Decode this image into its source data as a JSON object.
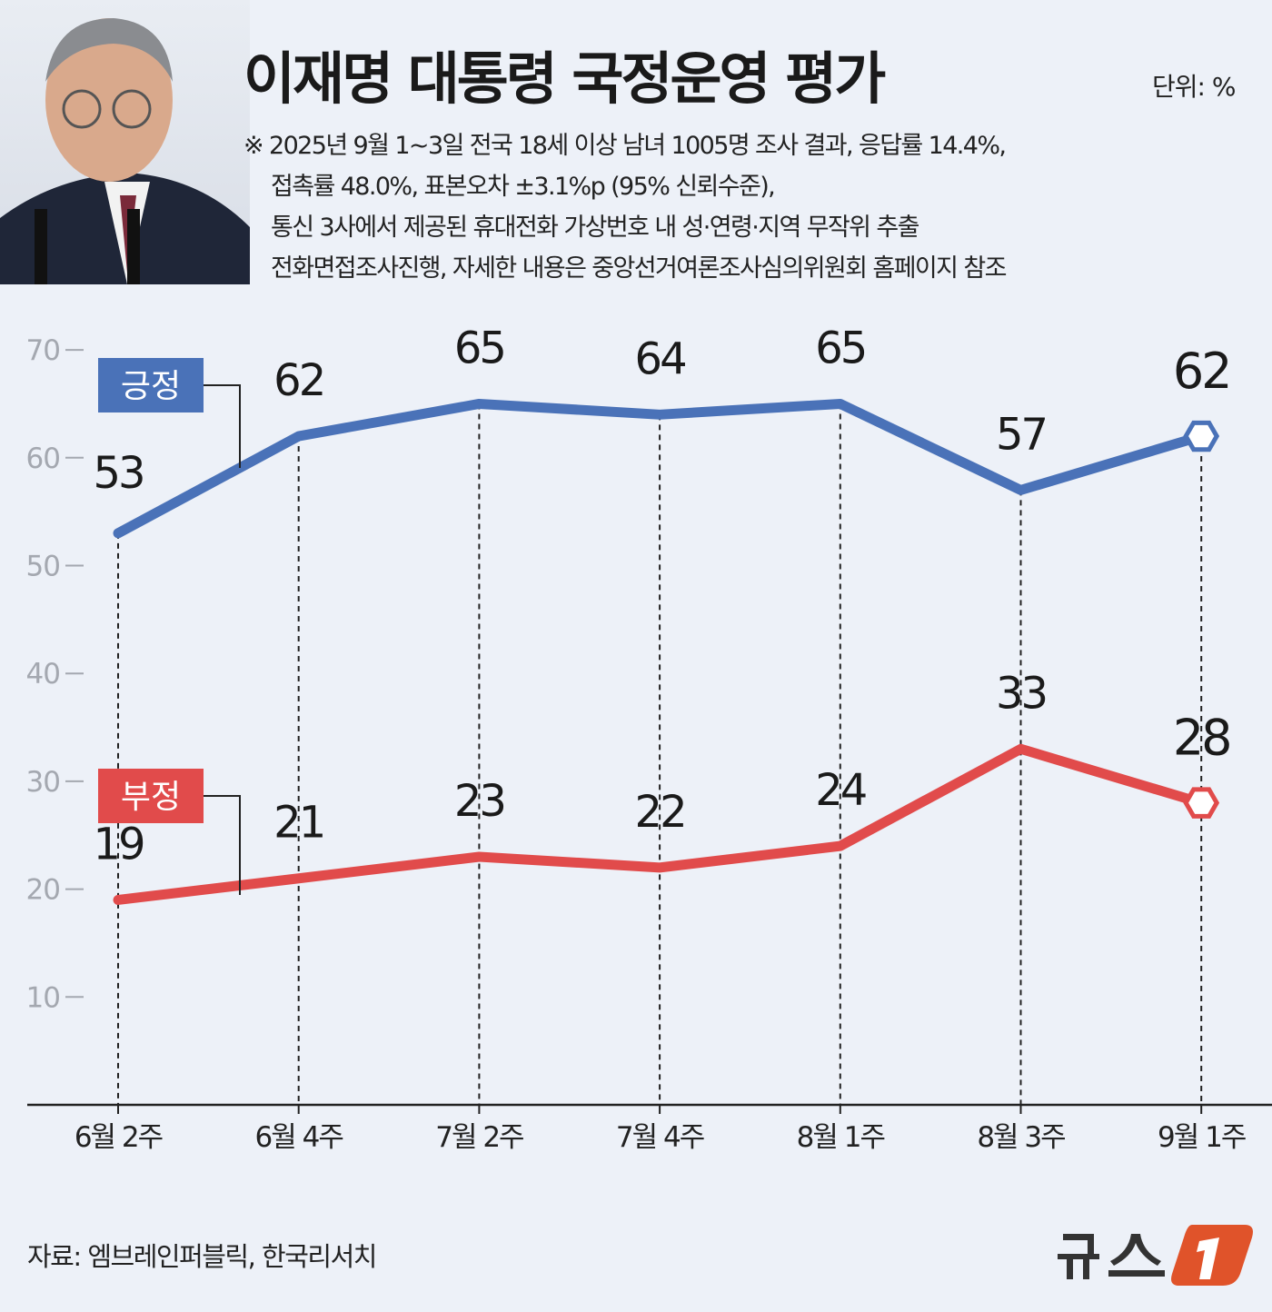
{
  "title": "이재명 대통령 국정운영 평가",
  "unit": "단위: %",
  "note": [
    "※ 2025년 9월 1~3일 전국 18세 이상 남녀 1005명 조사 결과, 응답률 14.4%,",
    "접촉률 48.0%, 표본오차 ±3.1%p (95% 신뢰수준),",
    "통신 3사에서 제공된 휴대전화 가상번호 내 성·연령·지역 무작위 추출",
    "전화면접조사진행, 자세한 내용은 중앙선거여론조사심의위원회 홈페이지 참조"
  ],
  "source": "자료: 엠브레인퍼블릭, 한국리서치",
  "logo_text": "뉴스1",
  "colors": {
    "positive": "#4a72b8",
    "negative": "#e14b4b",
    "background": "#edf1f8"
  },
  "chart_data": {
    "type": "line",
    "categories": [
      "6월 2주",
      "6월 4주",
      "7월 2주",
      "7월 4주",
      "8월 1주",
      "8월 3주",
      "9월 1주"
    ],
    "series": [
      {
        "name": "긍정",
        "values": [
          53,
          62,
          65,
          64,
          65,
          57,
          62
        ],
        "color": "#4a72b8"
      },
      {
        "name": "부정",
        "values": [
          19,
          21,
          23,
          22,
          24,
          33,
          28
        ],
        "color": "#e14b4b"
      }
    ],
    "yticks": [
      10,
      20,
      30,
      40,
      50,
      60,
      70
    ],
    "ylim": [
      0,
      70
    ],
    "grid": false,
    "legend": "inline-left"
  }
}
